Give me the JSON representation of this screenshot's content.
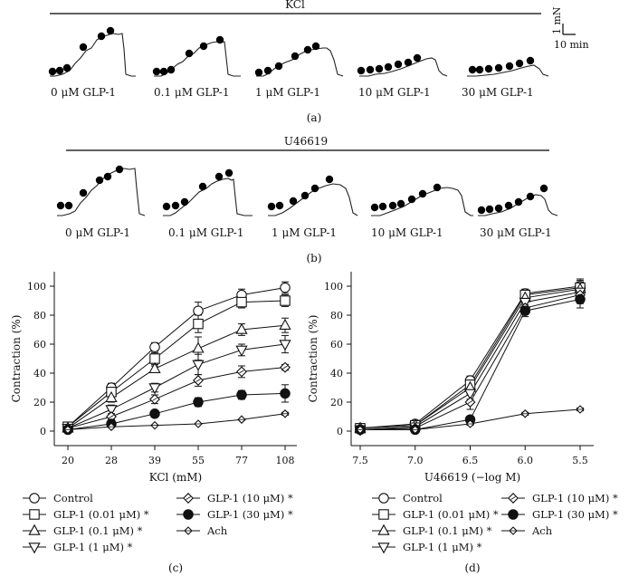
{
  "panel_a": {
    "stimulus": "KCl",
    "label": "(a)",
    "traces": [
      "0 μM GLP-1",
      "0.1 μM GLP-1",
      "1 μM GLP-1",
      "10 μM GLP-1",
      "30 μM GLP-1"
    ],
    "scale_force": "1 mN",
    "scale_time": "10 min"
  },
  "panel_b": {
    "stimulus": "U46619",
    "label": "(b)",
    "traces": [
      "0 μM GLP-1",
      "0.1 μM GLP-1",
      "1 μM GLP-1",
      "10 μM GLP-1",
      "30 μM GLP-1"
    ]
  },
  "chart_data": [
    {
      "id": "c",
      "label": "(c)",
      "type": "line",
      "xlabel": "KCl (mM)",
      "ylabel": "Contraction (%)",
      "ylim": [
        -10,
        110
      ],
      "yticks": [
        "0",
        "20",
        "40",
        "60",
        "80",
        "100"
      ],
      "categories": [
        "20",
        "28",
        "39",
        "55",
        "77",
        "108"
      ],
      "series": [
        {
          "name": "Control",
          "marker": "circle-open",
          "values": [
            3,
            30,
            58,
            83,
            94,
            99
          ],
          "errors": [
            1,
            3,
            3,
            6,
            4,
            4
          ]
        },
        {
          "name": "GLP-1 (0.01 μM) *",
          "marker": "square-open",
          "values": [
            3,
            27,
            50,
            74,
            89,
            90
          ],
          "errors": [
            1,
            3,
            4,
            6,
            4,
            4
          ]
        },
        {
          "name": "GLP-1 (0.1 μM) *",
          "marker": "triangle-up-open",
          "values": [
            2,
            23,
            43,
            57,
            70,
            73
          ],
          "errors": [
            1,
            3,
            2,
            8,
            4,
            5
          ]
        },
        {
          "name": "GLP-1 (1 μM) *",
          "marker": "triangle-down-open",
          "values": [
            2,
            15,
            30,
            46,
            56,
            60
          ],
          "errors": [
            1,
            3,
            3,
            7,
            4,
            6
          ]
        },
        {
          "name": "GLP-1 (10 μM) *",
          "marker": "diamond-open",
          "values": [
            2,
            10,
            22,
            35,
            41,
            44
          ],
          "errors": [
            1,
            2,
            3,
            4,
            4,
            2
          ]
        },
        {
          "name": "GLP-1 (30 μM) *",
          "marker": "circle-filled",
          "values": [
            1,
            5,
            12,
            20,
            25,
            26
          ],
          "errors": [
            1,
            2,
            2,
            3,
            3,
            6
          ]
        },
        {
          "name": "Ach",
          "marker": "crossed-diamond",
          "values": [
            1,
            3,
            4,
            5,
            8,
            12
          ],
          "errors": [
            0,
            0,
            0,
            0,
            0,
            1
          ]
        }
      ]
    },
    {
      "id": "d",
      "label": "(d)",
      "type": "line",
      "xlabel": "U46619 (−log M)",
      "ylabel": "Contraction (%)",
      "ylim": [
        -10,
        110
      ],
      "yticks": [
        "0",
        "20",
        "40",
        "60",
        "80",
        "100"
      ],
      "categories": [
        "7.5",
        "7.0",
        "6.5",
        "6.0",
        "5.5"
      ],
      "series": [
        {
          "name": "Control",
          "marker": "circle-open",
          "values": [
            2,
            5,
            35,
            95,
            100
          ],
          "errors": [
            1,
            1,
            3,
            3,
            5
          ]
        },
        {
          "name": "GLP-1 (0.01 μM) *",
          "marker": "square-open",
          "values": [
            2,
            4,
            32,
            94,
            99
          ],
          "errors": [
            1,
            1,
            4,
            3,
            5
          ]
        },
        {
          "name": "GLP-1 (0.1 μM) *",
          "marker": "triangle-up-open",
          "values": [
            2,
            4,
            30,
            92,
            98
          ],
          "errors": [
            1,
            1,
            4,
            3,
            5
          ]
        },
        {
          "name": "GLP-1 (1 μM) *",
          "marker": "triangle-down-open",
          "values": [
            1,
            3,
            26,
            89,
            96
          ],
          "errors": [
            1,
            1,
            4,
            4,
            6
          ]
        },
        {
          "name": "GLP-1 (10 μM) *",
          "marker": "diamond-open",
          "values": [
            1,
            2,
            20,
            85,
            94
          ],
          "errors": [
            1,
            1,
            5,
            4,
            6
          ]
        },
        {
          "name": "GLP-1 (30 μM) *",
          "marker": "circle-filled",
          "values": [
            1,
            1,
            8,
            83,
            91
          ],
          "errors": [
            1,
            1,
            2,
            4,
            6
          ]
        },
        {
          "name": "Ach",
          "marker": "crossed-diamond",
          "values": [
            1,
            1,
            5,
            12,
            15
          ],
          "errors": [
            0,
            0,
            1,
            1,
            1
          ]
        }
      ]
    }
  ]
}
